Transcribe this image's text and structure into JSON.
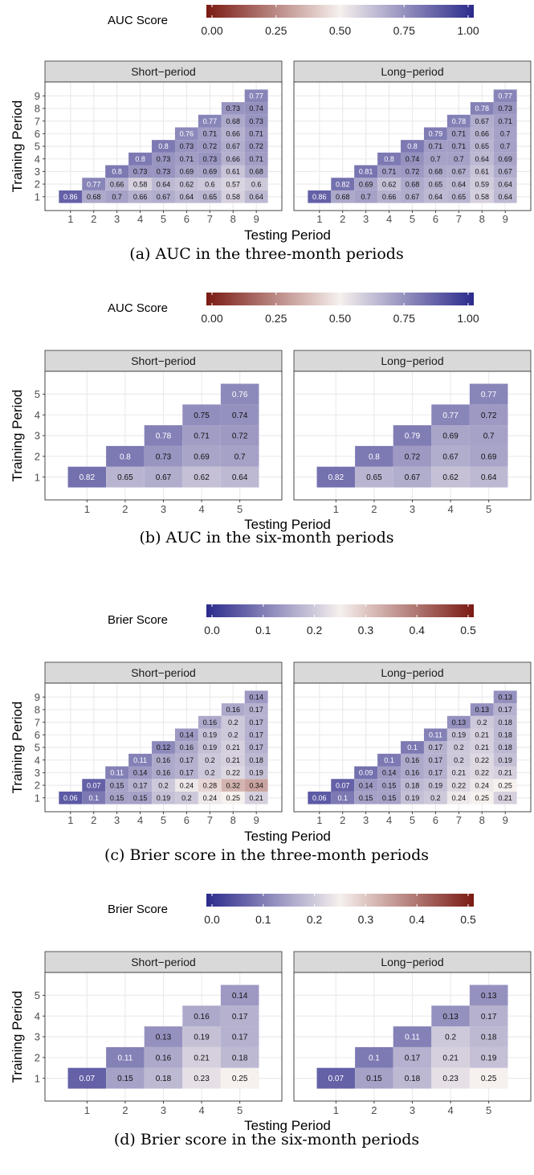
{
  "figure": {
    "panels": [
      {
        "id": "a",
        "caption": "(a) AUC in the three-month periods",
        "legend": {
          "title": "AUC Score",
          "ticks": [
            "0.00",
            "0.25",
            "0.50",
            "0.75",
            "1.00"
          ],
          "min": 0,
          "max": 1,
          "palette": "auc"
        },
        "xlabel": "Testing Period",
        "ylabel": "Training Period"
      },
      {
        "id": "b",
        "caption": "(b) AUC in the six-month periods",
        "legend": {
          "title": "AUC Score",
          "ticks": [
            "0.00",
            "0.25",
            "0.50",
            "0.75",
            "1.00"
          ],
          "min": 0,
          "max": 1,
          "palette": "auc"
        },
        "xlabel": "Testing Period",
        "ylabel": "Training Period"
      },
      {
        "id": "c",
        "caption": "(c) Brier score in the three-month periods",
        "legend": {
          "title": "Brier Score",
          "ticks": [
            "0.0",
            "0.1",
            "0.2",
            "0.3",
            "0.4",
            "0.5"
          ],
          "min": 0,
          "max": 0.5,
          "palette": "brier"
        },
        "xlabel": "Testing Period",
        "ylabel": "Training Period"
      },
      {
        "id": "d",
        "caption": "(d) Brier score in the six-month periods",
        "legend": {
          "title": "Brier Score",
          "ticks": [
            "0.0",
            "0.1",
            "0.2",
            "0.3",
            "0.4",
            "0.5"
          ],
          "min": 0,
          "max": 0.5,
          "palette": "brier"
        },
        "xlabel": "Testing Period",
        "ylabel": "Training Period"
      }
    ],
    "colors": {
      "low_red": "#7a1a12",
      "mid_white": "#f6f0ee",
      "high_blue": "#2b2a8c",
      "strip_bg": "#d9d9d9",
      "grid": "#ebebeb"
    }
  },
  "chart_data": [
    {
      "type": "heatmap",
      "title": "",
      "xlabel": "Testing Period",
      "ylabel": "Training Period",
      "color_scale": "AUC Score",
      "facets": [
        {
          "name": "Short−period",
          "n": 9,
          "values": [
            [
              0.86,
              0.68,
              0.7,
              0.66,
              0.67,
              0.64,
              0.65,
              0.58,
              0.64
            ],
            [
              null,
              0.77,
              0.66,
              0.58,
              0.64,
              0.62,
              0.6,
              0.57,
              0.6
            ],
            [
              null,
              null,
              0.8,
              0.73,
              0.73,
              0.69,
              0.69,
              0.61,
              0.68
            ],
            [
              null,
              null,
              null,
              0.8,
              0.73,
              0.71,
              0.73,
              0.66,
              0.71
            ],
            [
              null,
              null,
              null,
              null,
              0.8,
              0.73,
              0.72,
              0.67,
              0.72
            ],
            [
              null,
              null,
              null,
              null,
              null,
              0.76,
              0.71,
              0.66,
              0.71
            ],
            [
              null,
              null,
              null,
              null,
              null,
              null,
              0.77,
              0.68,
              0.73
            ],
            [
              null,
              null,
              null,
              null,
              null,
              null,
              null,
              0.73,
              0.74
            ],
            [
              null,
              null,
              null,
              null,
              null,
              null,
              null,
              null,
              0.77
            ]
          ]
        },
        {
          "name": "Long−period",
          "n": 9,
          "values": [
            [
              0.86,
              0.68,
              0.7,
              0.66,
              0.67,
              0.64,
              0.65,
              0.58,
              0.64
            ],
            [
              null,
              0.82,
              0.69,
              0.62,
              0.68,
              0.65,
              0.64,
              0.59,
              0.64
            ],
            [
              null,
              null,
              0.81,
              0.71,
              0.72,
              0.68,
              0.67,
              0.61,
              0.67
            ],
            [
              null,
              null,
              null,
              0.8,
              0.74,
              0.7,
              0.7,
              0.64,
              0.69
            ],
            [
              null,
              null,
              null,
              null,
              0.8,
              0.71,
              0.71,
              0.65,
              0.7
            ],
            [
              null,
              null,
              null,
              null,
              null,
              0.79,
              0.71,
              0.66,
              0.7
            ],
            [
              null,
              null,
              null,
              null,
              null,
              null,
              0.78,
              0.67,
              0.71
            ],
            [
              null,
              null,
              null,
              null,
              null,
              null,
              null,
              0.78,
              0.73
            ],
            [
              null,
              null,
              null,
              null,
              null,
              null,
              null,
              null,
              0.77
            ]
          ]
        }
      ]
    },
    {
      "type": "heatmap",
      "title": "",
      "xlabel": "Testing Period",
      "ylabel": "Training Period",
      "color_scale": "AUC Score",
      "facets": [
        {
          "name": "Short−period",
          "n": 5,
          "values": [
            [
              0.82,
              0.65,
              0.67,
              0.62,
              0.64
            ],
            [
              null,
              0.8,
              0.73,
              0.69,
              0.7
            ],
            [
              null,
              null,
              0.78,
              0.71,
              0.72
            ],
            [
              null,
              null,
              null,
              0.75,
              0.74
            ],
            [
              null,
              null,
              null,
              null,
              0.76
            ]
          ]
        },
        {
          "name": "Long−period",
          "n": 5,
          "values": [
            [
              0.82,
              0.65,
              0.67,
              0.62,
              0.64
            ],
            [
              null,
              0.8,
              0.72,
              0.67,
              0.69
            ],
            [
              null,
              null,
              0.79,
              0.69,
              0.7
            ],
            [
              null,
              null,
              null,
              0.77,
              0.72
            ],
            [
              null,
              null,
              null,
              null,
              0.77
            ]
          ]
        }
      ]
    },
    {
      "type": "heatmap",
      "title": "",
      "xlabel": "Testing Period",
      "ylabel": "Training Period",
      "color_scale": "Brier Score",
      "facets": [
        {
          "name": "Short−period",
          "n": 9,
          "values": [
            [
              0.06,
              0.1,
              0.15,
              0.15,
              0.19,
              0.2,
              0.24,
              0.25,
              0.21
            ],
            [
              null,
              0.07,
              0.15,
              0.17,
              0.2,
              0.24,
              0.28,
              0.32,
              0.34
            ],
            [
              null,
              null,
              0.11,
              0.14,
              0.16,
              0.17,
              0.2,
              0.22,
              0.19
            ],
            [
              null,
              null,
              null,
              0.11,
              0.16,
              0.17,
              0.2,
              0.21,
              0.18
            ],
            [
              null,
              null,
              null,
              null,
              0.12,
              0.16,
              0.19,
              0.21,
              0.17
            ],
            [
              null,
              null,
              null,
              null,
              null,
              0.14,
              0.19,
              0.2,
              0.17
            ],
            [
              null,
              null,
              null,
              null,
              null,
              null,
              0.16,
              0.2,
              0.17
            ],
            [
              null,
              null,
              null,
              null,
              null,
              null,
              null,
              0.16,
              0.17
            ],
            [
              null,
              null,
              null,
              null,
              null,
              null,
              null,
              null,
              0.14
            ]
          ]
        },
        {
          "name": "Long−period",
          "n": 9,
          "values": [
            [
              0.06,
              0.1,
              0.15,
              0.15,
              0.19,
              0.2,
              0.24,
              0.25,
              0.21
            ],
            [
              null,
              0.07,
              0.14,
              0.15,
              0.18,
              0.19,
              0.22,
              0.24,
              0.25
            ],
            [
              null,
              null,
              0.09,
              0.14,
              0.16,
              0.17,
              0.21,
              0.22,
              0.21
            ],
            [
              null,
              null,
              null,
              0.1,
              0.16,
              0.17,
              0.2,
              0.22,
              0.19
            ],
            [
              null,
              null,
              null,
              null,
              0.1,
              0.17,
              0.2,
              0.21,
              0.18
            ],
            [
              null,
              null,
              null,
              null,
              null,
              0.11,
              0.19,
              0.21,
              0.18
            ],
            [
              null,
              null,
              null,
              null,
              null,
              null,
              0.13,
              0.2,
              0.18
            ],
            [
              null,
              null,
              null,
              null,
              null,
              null,
              null,
              0.13,
              0.17
            ],
            [
              null,
              null,
              null,
              null,
              null,
              null,
              null,
              null,
              0.13
            ]
          ]
        }
      ]
    },
    {
      "type": "heatmap",
      "title": "",
      "xlabel": "Testing Period",
      "ylabel": "Training Period",
      "color_scale": "Brier Score",
      "facets": [
        {
          "name": "Short−period",
          "n": 5,
          "values": [
            [
              0.07,
              0.15,
              0.18,
              0.23,
              0.25
            ],
            [
              null,
              0.11,
              0.16,
              0.21,
              0.18
            ],
            [
              null,
              null,
              0.13,
              0.19,
              0.17
            ],
            [
              null,
              null,
              null,
              0.16,
              0.17
            ],
            [
              null,
              null,
              null,
              null,
              0.14
            ]
          ]
        },
        {
          "name": "Long−period",
          "n": 5,
          "values": [
            [
              0.07,
              0.15,
              0.18,
              0.23,
              0.25
            ],
            [
              null,
              0.1,
              0.17,
              0.21,
              0.19
            ],
            [
              null,
              null,
              0.11,
              0.2,
              0.18
            ],
            [
              null,
              null,
              null,
              0.13,
              0.17
            ],
            [
              null,
              null,
              null,
              null,
              0.13
            ]
          ]
        }
      ]
    }
  ]
}
